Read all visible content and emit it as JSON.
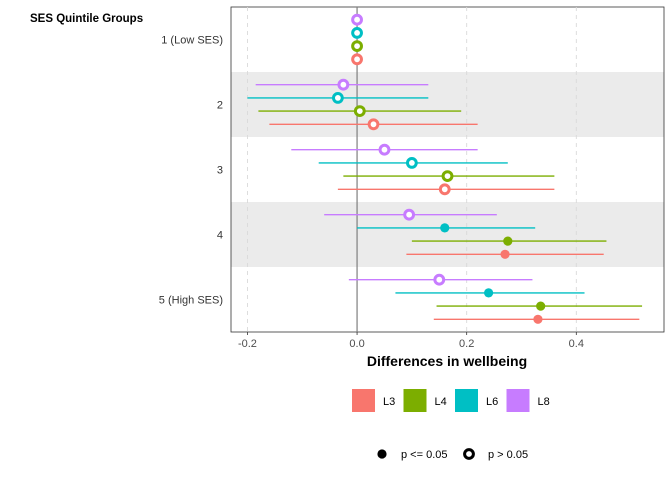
{
  "chart_data": {
    "type": "forest",
    "title": "",
    "ylabel": "SES Quintile Groups",
    "xlabel": "Differences in wellbeing",
    "xlim": [
      -0.23,
      0.56
    ],
    "xticks": [
      "-0.2",
      "0.0",
      "0.2",
      "0.4"
    ],
    "xtick_values": [
      -0.2,
      0.0,
      0.2,
      0.4
    ],
    "grid": "vertical dashed",
    "band_shading": "alternate groups",
    "zero_line": 0,
    "groups": [
      "1 (Low SES)",
      "2",
      "3",
      "4",
      "5 (High SES)"
    ],
    "series": [
      {
        "name": "L3",
        "color": "#F8766D",
        "estimates": [
          0.0,
          0.03,
          0.16,
          0.27,
          0.33
        ],
        "lower": [
          null,
          -0.16,
          -0.035,
          0.09,
          0.14
        ],
        "upper": [
          null,
          0.22,
          0.36,
          0.45,
          0.515
        ],
        "significant": [
          false,
          false,
          false,
          true,
          true
        ]
      },
      {
        "name": "L4",
        "color": "#7CAE00",
        "estimates": [
          0.0,
          0.005,
          0.165,
          0.275,
          0.335
        ],
        "lower": [
          null,
          -0.18,
          -0.025,
          0.1,
          0.145
        ],
        "upper": [
          null,
          0.19,
          0.36,
          0.455,
          0.52
        ],
        "significant": [
          false,
          false,
          false,
          true,
          true
        ]
      },
      {
        "name": "L6",
        "color": "#00BFC4",
        "estimates": [
          0.0,
          -0.035,
          0.1,
          0.16,
          0.24
        ],
        "lower": [
          null,
          -0.2,
          -0.07,
          0.0,
          0.07
        ],
        "upper": [
          null,
          0.13,
          0.275,
          0.325,
          0.415
        ],
        "significant": [
          false,
          false,
          false,
          true,
          true
        ]
      },
      {
        "name": "L8",
        "color": "#C77CFF",
        "estimates": [
          0.0,
          -0.025,
          0.05,
          0.095,
          0.15
        ],
        "lower": [
          null,
          -0.185,
          -0.12,
          -0.06,
          -0.015
        ],
        "upper": [
          null,
          0.13,
          0.22,
          0.255,
          0.32
        ],
        "significant": [
          false,
          false,
          false,
          false,
          false
        ]
      }
    ],
    "legend": {
      "placement": "bottom",
      "color_keys": [
        "L3",
        "L4",
        "L6",
        "L8"
      ],
      "shape_keys": [
        {
          "label": "p <= 0.05",
          "filled": true
        },
        {
          "label": "p > 0.05",
          "filled": false
        }
      ]
    }
  }
}
